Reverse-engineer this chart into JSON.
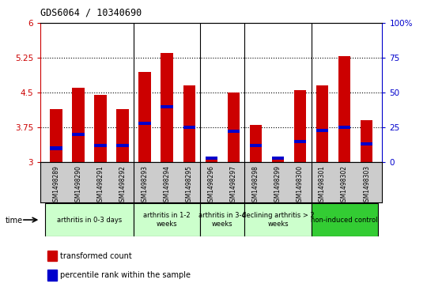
{
  "title": "GDS6064 / 10340690",
  "samples": [
    "GSM1498289",
    "GSM1498290",
    "GSM1498291",
    "GSM1498292",
    "GSM1498293",
    "GSM1498294",
    "GSM1498295",
    "GSM1498296",
    "GSM1498297",
    "GSM1498298",
    "GSM1498299",
    "GSM1498300",
    "GSM1498301",
    "GSM1498302",
    "GSM1498303"
  ],
  "transformed_count": [
    4.15,
    4.6,
    4.45,
    4.15,
    4.95,
    5.35,
    4.65,
    3.07,
    4.5,
    3.8,
    3.08,
    4.55,
    4.65,
    5.28,
    3.9
  ],
  "percentile_rank": [
    10,
    20,
    12,
    12,
    28,
    40,
    25,
    3,
    22,
    12,
    3,
    15,
    23,
    25,
    13
  ],
  "ylim_left": [
    3.0,
    6.0
  ],
  "ylim_right": [
    0,
    100
  ],
  "yticks_left": [
    3.0,
    3.75,
    4.5,
    5.25,
    6.0
  ],
  "yticks_right": [
    0,
    25,
    50,
    75,
    100
  ],
  "ytick_labels_left": [
    "3",
    "3.75",
    "4.5",
    "5.25",
    "6"
  ],
  "ytick_labels_right": [
    "0",
    "25",
    "50",
    "75",
    "100%"
  ],
  "bar_color_red": "#cc0000",
  "bar_color_blue": "#0000cc",
  "groups": [
    {
      "label": "arthritis in 0-3 days",
      "start": 0,
      "end": 4,
      "color": "#ccffcc"
    },
    {
      "label": "arthritis in 1-2\nweeks",
      "start": 4,
      "end": 7,
      "color": "#ccffcc"
    },
    {
      "label": "arthritis in 3-4\nweeks",
      "start": 7,
      "end": 9,
      "color": "#ccffcc"
    },
    {
      "label": "declining arthritis > 2\nweeks",
      "start": 9,
      "end": 12,
      "color": "#ccffcc"
    },
    {
      "label": "non-induced control",
      "start": 12,
      "end": 15,
      "color": "#33cc33"
    }
  ],
  "group_border_indices": [
    4,
    7,
    9,
    12
  ],
  "bar_width": 0.55,
  "xticklabel_bg": "#cccccc",
  "plot_bg": "#ffffff"
}
